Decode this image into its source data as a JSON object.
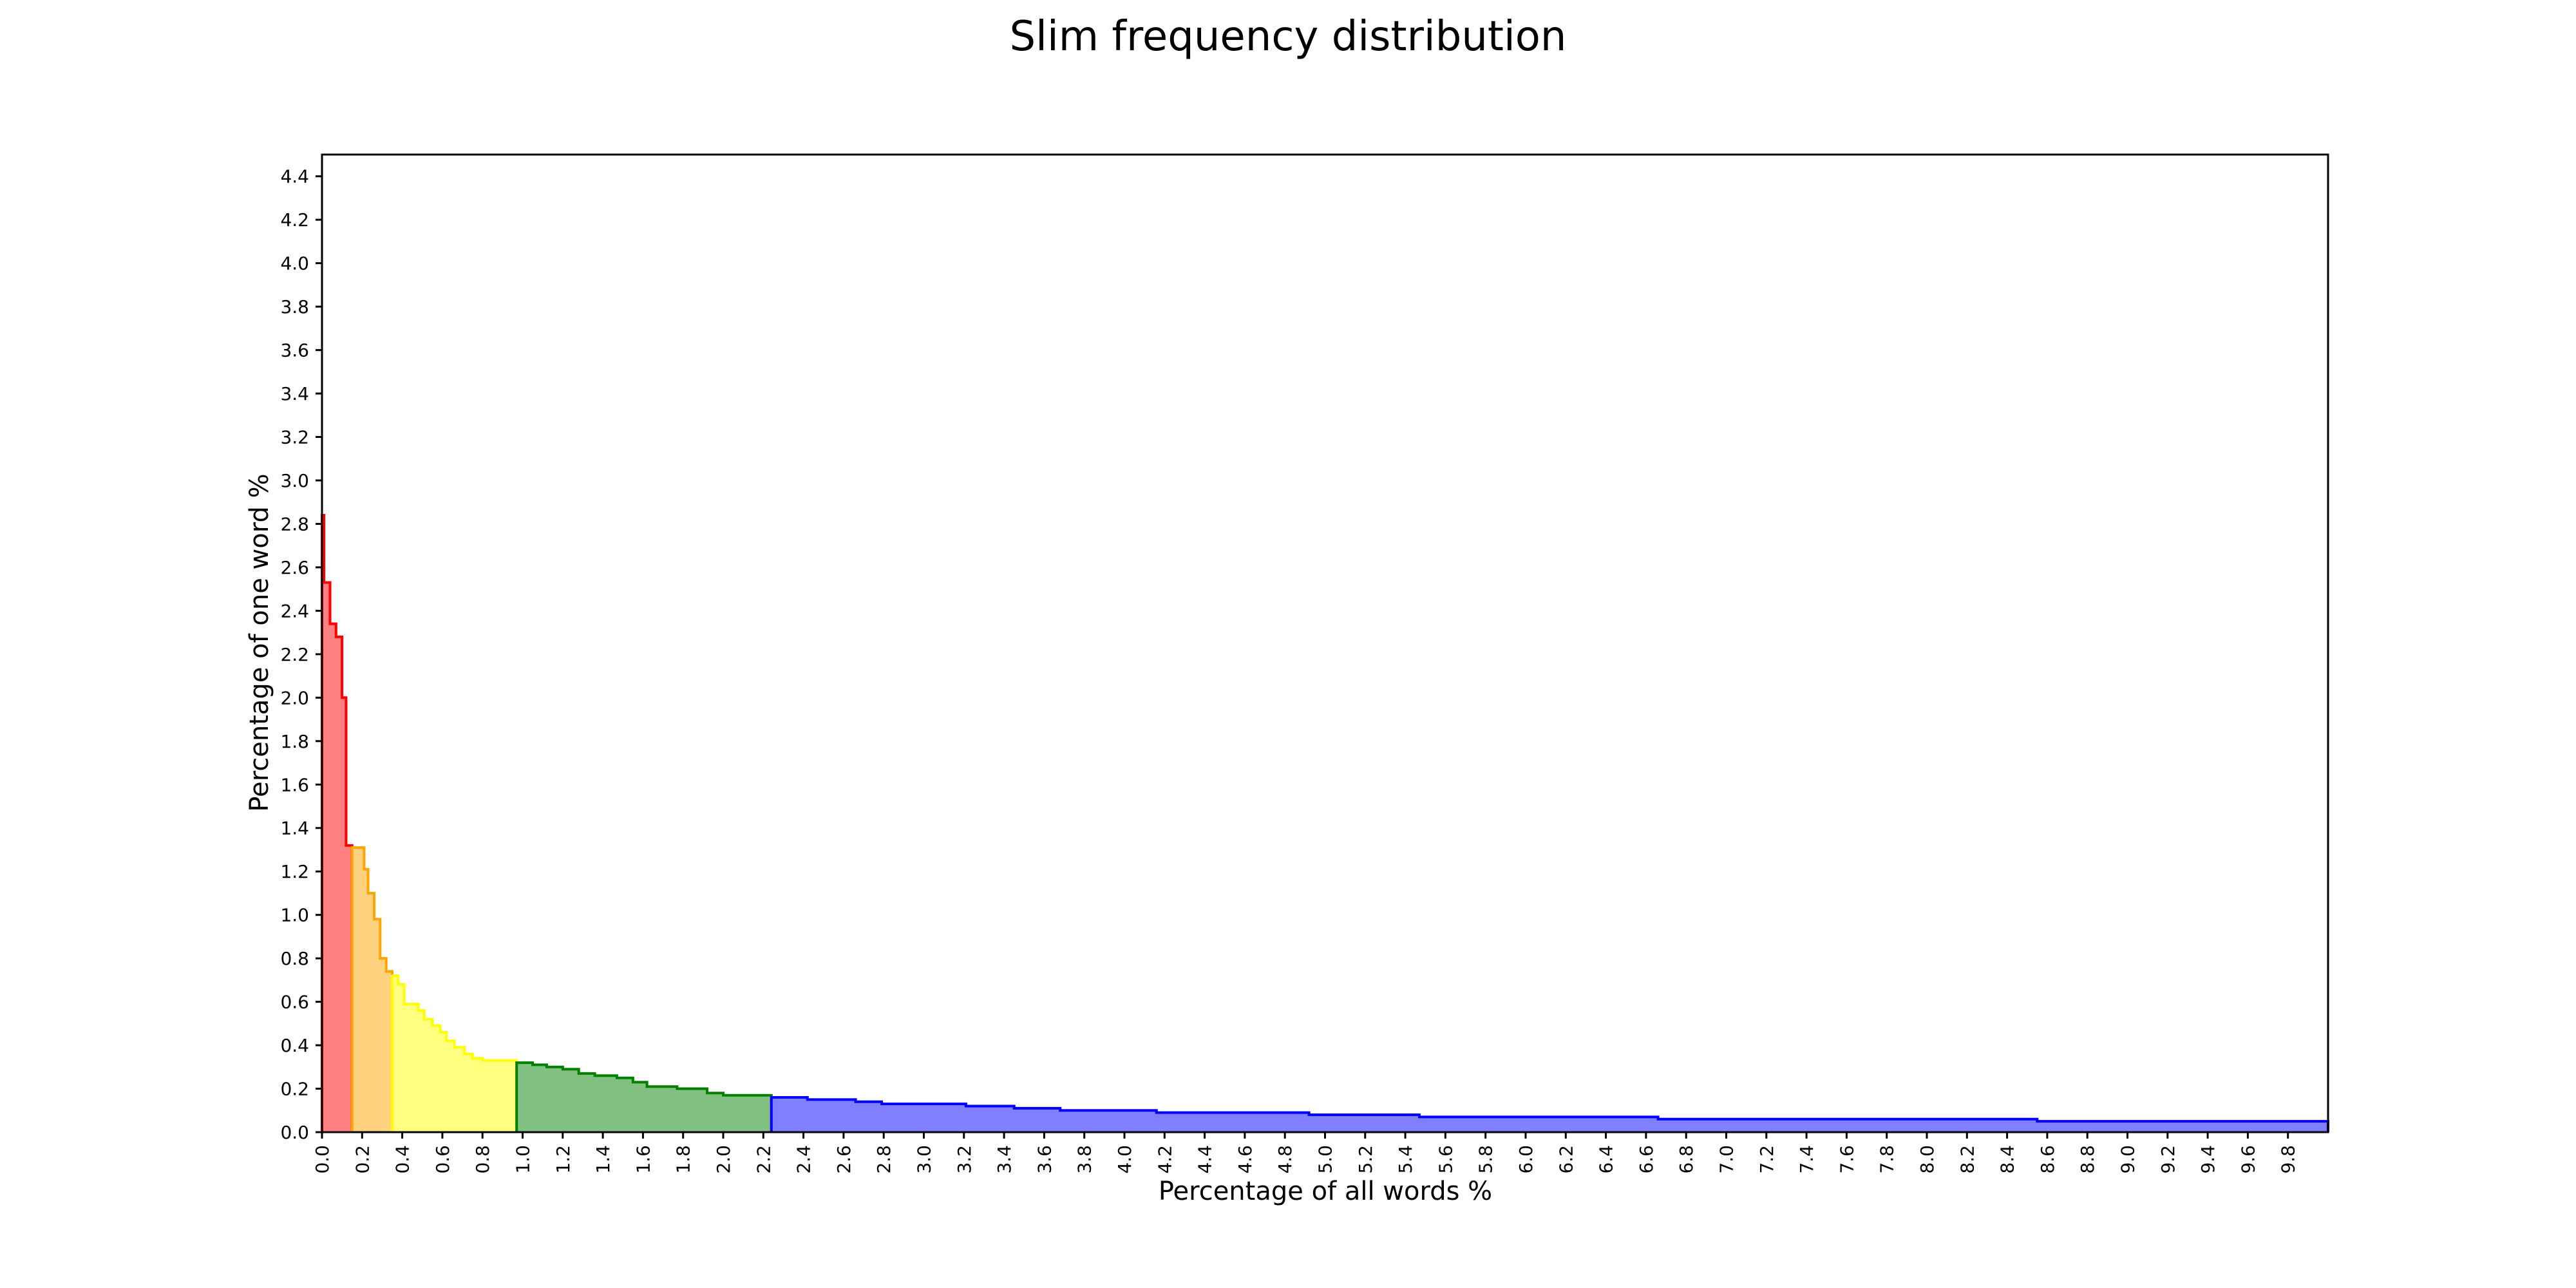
{
  "chart_data": {
    "type": "area",
    "title": "Slim frequency distribution",
    "xlabel": "Percentage of all words %",
    "ylabel": "Percentage of one word %",
    "xlim": [
      0,
      10
    ],
    "ylim": [
      0,
      4.5
    ],
    "grid": false,
    "x_ticks": [
      "0.0",
      "0.2",
      "0.4",
      "0.6",
      "0.8",
      "1.0",
      "1.2",
      "1.4",
      "1.6",
      "1.8",
      "2.0",
      "2.2",
      "2.4",
      "2.6",
      "2.8",
      "3.0",
      "3.2",
      "3.4",
      "3.6",
      "3.8",
      "4.0",
      "4.2",
      "4.4",
      "4.6",
      "4.8",
      "5.0",
      "5.2",
      "5.4",
      "5.6",
      "5.8",
      "6.0",
      "6.2",
      "6.4",
      "6.6",
      "6.8",
      "7.0",
      "7.2",
      "7.4",
      "7.6",
      "7.8",
      "8.0",
      "8.2",
      "8.4",
      "8.6",
      "8.8",
      "9.0",
      "9.2",
      "9.4",
      "9.6",
      "9.8"
    ],
    "y_ticks": [
      "0.0",
      "0.2",
      "0.4",
      "0.6",
      "0.8",
      "1.0",
      "1.2",
      "1.4",
      "1.6",
      "1.8",
      "2.0",
      "2.2",
      "2.4",
      "2.6",
      "2.8",
      "3.0",
      "3.2",
      "3.4",
      "3.6",
      "3.8",
      "4.0",
      "4.2",
      "4.4"
    ],
    "series": [
      {
        "color": "#ff0000",
        "fill": "#ff8080",
        "steps": [
          [
            0.0,
            2.84
          ],
          [
            0.01,
            2.53
          ],
          [
            0.04,
            2.34
          ],
          [
            0.07,
            2.28
          ],
          [
            0.1,
            2.0
          ],
          [
            0.12,
            1.32
          ],
          [
            0.15,
            1.32
          ]
        ]
      },
      {
        "color": "#ffa500",
        "fill": "#ffd280",
        "steps": [
          [
            0.15,
            1.31
          ],
          [
            0.21,
            1.21
          ],
          [
            0.23,
            1.1
          ],
          [
            0.26,
            0.98
          ],
          [
            0.29,
            0.8
          ],
          [
            0.32,
            0.74
          ],
          [
            0.35,
            0.74
          ]
        ]
      },
      {
        "color": "#ffff00",
        "fill": "#ffff80",
        "steps": [
          [
            0.35,
            0.72
          ],
          [
            0.38,
            0.68
          ],
          [
            0.41,
            0.59
          ],
          [
            0.48,
            0.56
          ],
          [
            0.51,
            0.52
          ],
          [
            0.55,
            0.49
          ],
          [
            0.59,
            0.46
          ],
          [
            0.62,
            0.42
          ],
          [
            0.66,
            0.39
          ],
          [
            0.71,
            0.36
          ],
          [
            0.75,
            0.34
          ],
          [
            0.8,
            0.33
          ],
          [
            0.97,
            0.33
          ]
        ]
      },
      {
        "color": "#008000",
        "fill": "#80c080",
        "steps": [
          [
            0.97,
            0.32
          ],
          [
            1.05,
            0.31
          ],
          [
            1.12,
            0.3
          ],
          [
            1.2,
            0.29
          ],
          [
            1.28,
            0.27
          ],
          [
            1.36,
            0.26
          ],
          [
            1.47,
            0.25
          ],
          [
            1.55,
            0.23
          ],
          [
            1.62,
            0.21
          ],
          [
            1.77,
            0.2
          ],
          [
            1.81,
            0.2
          ],
          [
            1.92,
            0.18
          ],
          [
            2.0,
            0.17
          ],
          [
            2.15,
            0.17
          ],
          [
            2.24,
            0.17
          ]
        ]
      },
      {
        "color": "#0000ff",
        "fill": "#8080ff",
        "steps": [
          [
            2.24,
            0.16
          ],
          [
            2.42,
            0.15
          ],
          [
            2.66,
            0.14
          ],
          [
            2.79,
            0.13
          ],
          [
            3.21,
            0.12
          ],
          [
            3.45,
            0.11
          ],
          [
            3.68,
            0.1
          ],
          [
            4.16,
            0.09
          ],
          [
            4.92,
            0.08
          ],
          [
            5.47,
            0.07
          ],
          [
            6.66,
            0.06
          ],
          [
            8.55,
            0.05
          ],
          [
            10.0,
            0.05
          ]
        ]
      }
    ]
  }
}
